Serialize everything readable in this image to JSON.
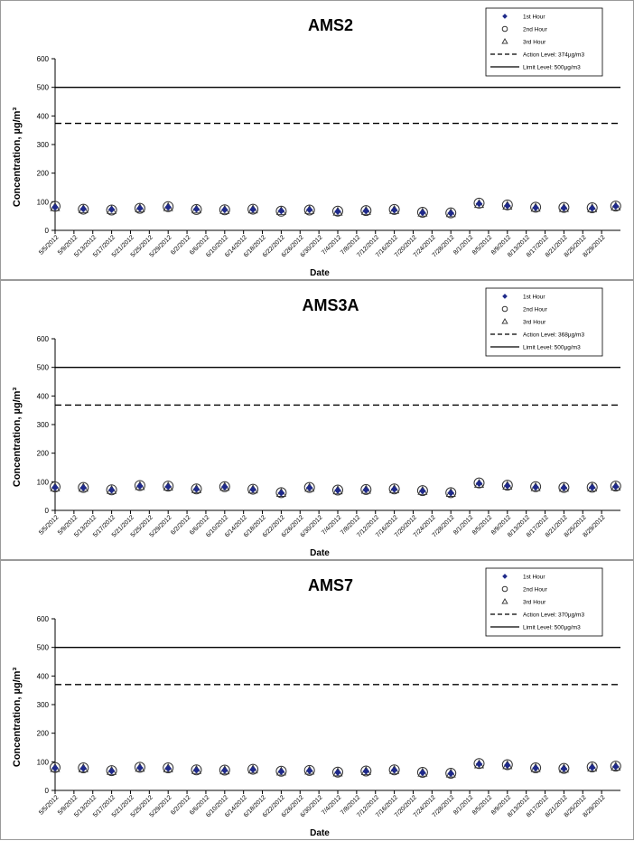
{
  "chart_data": [
    {
      "type": "scatter",
      "title": "AMS2",
      "xlabel": "Date",
      "ylabel": "Concentration,  µg/m³",
      "ylim": [
        0,
        600
      ],
      "yticks": [
        0,
        100,
        200,
        300,
        400,
        500,
        600
      ],
      "legend_position": "top-right",
      "x_tick_labels": [
        "5/5/2012",
        "5/9/2012",
        "5/13/2012",
        "5/17/2012",
        "5/21/2012",
        "5/25/2012",
        "5/29/2012",
        "6/2/2012",
        "6/6/2012",
        "6/10/2012",
        "6/14/2012",
        "6/18/2012",
        "6/22/2012",
        "6/26/2012",
        "6/30/2012",
        "7/4/2012",
        "7/8/2012",
        "7/12/2012",
        "7/16/2012",
        "7/20/2012",
        "7/24/2012",
        "7/28/2012",
        "8/1/2012",
        "8/5/2012",
        "8/9/2012",
        "8/13/2012",
        "8/17/2012",
        "8/21/2012",
        "8/25/2012",
        "8/29/2012"
      ],
      "x": [
        "5/5/2012",
        "5/11/2012",
        "5/17/2012",
        "5/23/2012",
        "5/29/2012",
        "6/4/2012",
        "6/10/2012",
        "6/16/2012",
        "6/22/2012",
        "6/28/2012",
        "7/4/2012",
        "7/10/2012",
        "7/16/2012",
        "7/22/2012",
        "7/28/2012",
        "8/3/2012",
        "8/9/2012",
        "8/15/2012",
        "8/21/2012",
        "8/27/2012",
        "9/1/2012"
      ],
      "series": [
        {
          "name": "1st Hour",
          "marker": "diamond",
          "values": [
            81,
            75,
            73,
            77,
            81,
            74,
            72,
            73,
            68,
            72,
            66,
            68,
            71,
            62,
            60,
            93,
            86,
            79,
            78,
            77,
            84
          ]
        },
        {
          "name": "2nd Hour",
          "marker": "circle",
          "values": [
            84,
            74,
            71,
            77,
            83,
            73,
            72,
            74,
            67,
            71,
            67,
            69,
            73,
            63,
            61,
            95,
            89,
            81,
            80,
            79,
            85
          ]
        },
        {
          "name": "3rd Hour",
          "marker": "triangle",
          "values": [
            80,
            73,
            70,
            76,
            80,
            72,
            70,
            72,
            66,
            70,
            64,
            67,
            70,
            61,
            59,
            91,
            85,
            78,
            77,
            76,
            82
          ]
        }
      ],
      "reference_lines": [
        {
          "name": "Action Level: 374µg/m3",
          "value": 374,
          "style": "dashed"
        },
        {
          "name": "Limit Level: 500µg/m3",
          "value": 500,
          "style": "solid"
        }
      ],
      "grid": false
    },
    {
      "type": "scatter",
      "title": "AMS3A",
      "xlabel": "Date",
      "ylabel": "Concentration,  µg/m³",
      "ylim": [
        0,
        600
      ],
      "yticks": [
        0,
        100,
        200,
        300,
        400,
        500,
        600
      ],
      "legend_position": "top-right",
      "x_tick_labels": [
        "5/5/2012",
        "5/9/2012",
        "5/13/2012",
        "5/17/2012",
        "5/21/2012",
        "5/25/2012",
        "5/29/2012",
        "6/2/2012",
        "6/6/2012",
        "6/10/2012",
        "6/14/2012",
        "6/18/2012",
        "6/22/2012",
        "6/26/2012",
        "6/30/2012",
        "7/4/2012",
        "7/8/2012",
        "7/12/2012",
        "7/16/2012",
        "7/20/2012",
        "7/24/2012",
        "7/28/2012",
        "8/1/2012",
        "8/5/2012",
        "8/9/2012",
        "8/13/2012",
        "8/17/2012",
        "8/21/2012",
        "8/25/2012",
        "8/29/2012"
      ],
      "x": [
        "5/5/2012",
        "5/11/2012",
        "5/17/2012",
        "5/23/2012",
        "5/29/2012",
        "6/4/2012",
        "6/10/2012",
        "6/16/2012",
        "6/22/2012",
        "6/28/2012",
        "7/4/2012",
        "7/10/2012",
        "7/16/2012",
        "7/22/2012",
        "7/28/2012",
        "8/3/2012",
        "8/9/2012",
        "8/15/2012",
        "8/21/2012",
        "8/27/2012",
        "9/1/2012"
      ],
      "series": [
        {
          "name": "1st Hour",
          "marker": "diamond",
          "values": [
            80,
            79,
            71,
            85,
            83,
            74,
            82,
            73,
            61,
            79,
            70,
            72,
            74,
            68,
            61,
            94,
            86,
            81,
            79,
            80,
            83
          ]
        },
        {
          "name": "2nd Hour",
          "marker": "circle",
          "values": [
            82,
            80,
            72,
            87,
            85,
            75,
            83,
            74,
            62,
            80,
            71,
            73,
            75,
            69,
            62,
            96,
            88,
            83,
            80,
            81,
            85
          ]
        },
        {
          "name": "3rd Hour",
          "marker": "triangle",
          "values": [
            79,
            78,
            70,
            84,
            82,
            73,
            81,
            72,
            60,
            78,
            69,
            71,
            73,
            67,
            60,
            92,
            85,
            80,
            78,
            79,
            82
          ]
        }
      ],
      "reference_lines": [
        {
          "name": "Action Level: 368µg/m3",
          "value": 368,
          "style": "dashed"
        },
        {
          "name": "Limit Level: 500µg/m3",
          "value": 500,
          "style": "solid"
        }
      ],
      "grid": false
    },
    {
      "type": "scatter",
      "title": "AMS7",
      "xlabel": "Date",
      "ylabel": "Concentration,  µg/m³",
      "ylim": [
        0,
        600
      ],
      "yticks": [
        0,
        100,
        200,
        300,
        400,
        500,
        600
      ],
      "legend_position": "top-right",
      "x_tick_labels": [
        "5/5/2012",
        "5/9/2012",
        "5/13/2012",
        "5/17/2012",
        "5/21/2012",
        "5/25/2012",
        "5/29/2012",
        "6/2/2012",
        "6/6/2012",
        "6/10/2012",
        "6/14/2012",
        "6/18/2012",
        "6/22/2012",
        "6/26/2012",
        "6/30/2012",
        "7/4/2012",
        "7/8/2012",
        "7/12/2012",
        "7/16/2012",
        "7/20/2012",
        "7/24/2012",
        "7/28/2012",
        "8/1/2012",
        "8/5/2012",
        "8/9/2012",
        "8/13/2012",
        "8/17/2012",
        "8/21/2012",
        "8/25/2012",
        "8/29/2012"
      ],
      "x": [
        "5/5/2012",
        "5/11/2012",
        "5/17/2012",
        "5/23/2012",
        "5/29/2012",
        "6/4/2012",
        "6/10/2012",
        "6/16/2012",
        "6/22/2012",
        "6/28/2012",
        "7/4/2012",
        "7/10/2012",
        "7/16/2012",
        "7/22/2012",
        "7/28/2012",
        "8/3/2012",
        "8/9/2012",
        "8/15/2012",
        "8/21/2012",
        "8/27/2012",
        "9/1/2012"
      ],
      "series": [
        {
          "name": "1st Hour",
          "marker": "diamond",
          "values": [
            78,
            77,
            68,
            79,
            77,
            71,
            70,
            73,
            66,
            69,
            63,
            67,
            71,
            62,
            59,
            92,
            88,
            78,
            76,
            80,
            83
          ]
        },
        {
          "name": "2nd Hour",
          "marker": "circle",
          "values": [
            80,
            79,
            69,
            81,
            79,
            72,
            71,
            74,
            67,
            70,
            64,
            68,
            72,
            63,
            60,
            94,
            90,
            79,
            77,
            82,
            85
          ]
        },
        {
          "name": "3rd Hour",
          "marker": "triangle",
          "values": [
            77,
            76,
            67,
            78,
            76,
            70,
            69,
            72,
            65,
            68,
            62,
            66,
            70,
            61,
            58,
            90,
            87,
            77,
            75,
            79,
            82
          ]
        }
      ],
      "reference_lines": [
        {
          "name": "Action Level: 370µg/m3",
          "value": 370,
          "style": "dashed"
        },
        {
          "name": "Limit Level: 500µg/m3",
          "value": 500,
          "style": "solid"
        }
      ],
      "grid": false
    }
  ],
  "colors": {
    "first_hour": "#1f2a8a",
    "markers_outline": "#333333",
    "lines": "#000000",
    "text": "#000000",
    "frame": "#9a9a9a"
  }
}
